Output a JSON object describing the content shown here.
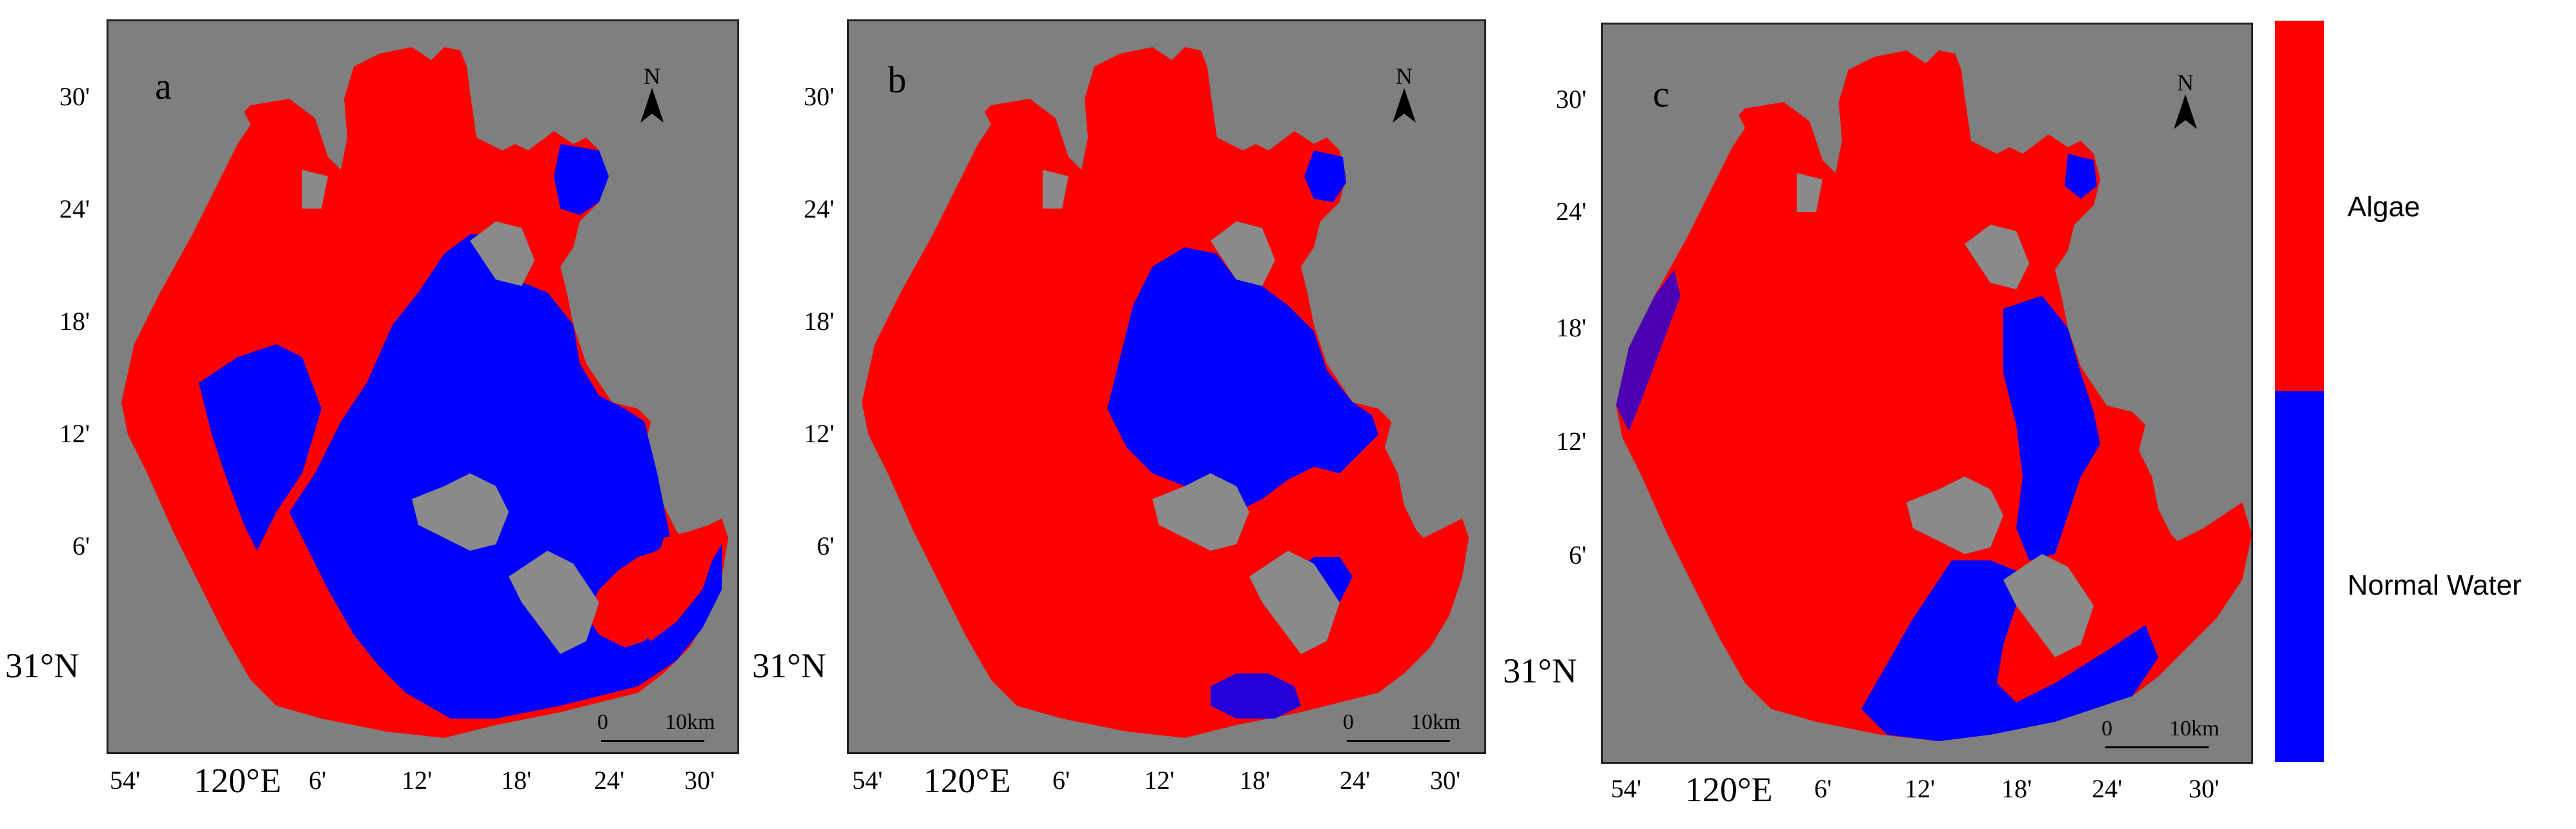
{
  "panels": [
    {
      "label": "a",
      "north": "N",
      "scale": {
        "zero": "0",
        "distance": "10km"
      },
      "y_ticks": [
        "30'",
        "24'",
        "18'",
        "12'",
        "6'"
      ],
      "y_origin": "31°N",
      "x_ticks": [
        "54'",
        "6'",
        "12'",
        "18'",
        "24'",
        "30'"
      ],
      "x_origin": "120°E"
    },
    {
      "label": "b",
      "north": "N",
      "scale": {
        "zero": "0",
        "distance": "10km"
      },
      "y_ticks": [
        "30'",
        "24'",
        "18'",
        "12'",
        "6'"
      ],
      "y_origin": "31°N",
      "x_ticks": [
        "54'",
        "6'",
        "12'",
        "18'",
        "24'",
        "30'"
      ],
      "x_origin": "120°E"
    },
    {
      "label": "c",
      "north": "N",
      "scale": {
        "zero": "0",
        "distance": "10km"
      },
      "y_ticks": [
        "30'",
        "24'",
        "18'",
        "12'",
        "6'"
      ],
      "y_origin": "31°N",
      "x_ticks": [
        "54'",
        "6'",
        "12'",
        "18'",
        "24'",
        "30'"
      ],
      "x_origin": "120°E"
    }
  ],
  "legend": [
    {
      "label": "Algae",
      "color": "#ff0000"
    },
    {
      "label": "Normal Water",
      "color": "#0000ff"
    }
  ],
  "colors": {
    "background": "#7f7f7f",
    "algae": "#ff0000",
    "water": "#0000ff",
    "island": "#8a8a8a"
  }
}
